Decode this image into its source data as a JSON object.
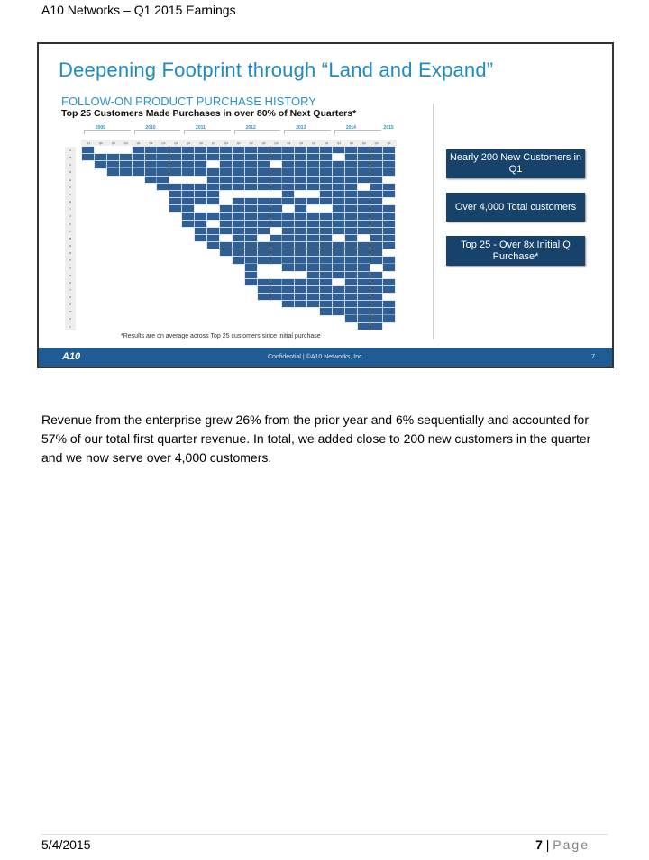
{
  "doc_header": "A10 Networks – Q1 2015 Earnings",
  "slide": {
    "title": "Deepening Footprint through “Land and Expand”",
    "subtitle": "FOLLOW-ON PRODUCT PURCHASE HISTORY",
    "subtitle2": "Top 25 Customers Made Purchases in over 80% of Next Quarters*",
    "years": [
      "2009",
      "2010",
      "2011",
      "2012",
      "2013",
      "2014",
      "2015"
    ],
    "quarters": [
      "Q1",
      "Q2",
      "Q3",
      "Q4",
      "Q1",
      "Q2",
      "Q3",
      "Q4",
      "Q1",
      "Q2",
      "Q3",
      "Q4",
      "Q1",
      "Q2",
      "Q3",
      "Q4",
      "Q1",
      "Q2",
      "Q3",
      "Q4",
      "Q1",
      "Q2",
      "Q3",
      "Q4",
      "Q1"
    ],
    "rows": [
      "A",
      "B",
      "C",
      "D",
      "E",
      "F",
      "G",
      "H",
      "I",
      "J",
      "K",
      "L",
      "M",
      "N",
      "O",
      "P",
      "Q",
      "R",
      "S",
      "T",
      "U",
      "V",
      "W",
      "X",
      "Y"
    ],
    "purchases": [
      "1000111111111111111111111",
      "1111111111111111111101111",
      "0111111111011110111111111",
      "0011111111111111111111111",
      "0000011000111111111111110",
      "0000001111111111111111011",
      "0000000111100000100111111",
      "0000000111101111111111110",
      "0000000110011111010011111",
      "0000000011111111111111111",
      "0000000011011111111111111",
      "0000000001111110111111111",
      "0000000001101101111101011",
      "0000000000111111111111111",
      "0000000000011111111111110",
      "0000000000001111111111111",
      "0000000000000100111111101",
      "0000000000000100001111110",
      "0000000000000111111101111",
      "0000000000000011111111111",
      "0000000000000011111111110",
      "0000000000000000111111111",
      "0000000000000000000111111",
      "0000000000000000000001111",
      "0000000000000000000000110"
    ],
    "cell_color": "#2f5f94",
    "callouts": [
      "Nearly 200 New Customers in Q1",
      "Over 4,000 Total customers",
      "Top 25 - Over 8x Initial Q Purchase*"
    ],
    "note": "*Results are on average across Top 25 customers since initial purchase",
    "footer": {
      "logo": "A10",
      "confidential": "Confidential   |   ©A10 Networks, Inc.",
      "page": "7"
    }
  },
  "paragraph": "Revenue from the enterprise grew 26% from the prior year and 6% sequentially and accounted for 57% of our total first quarter revenue.  In total, we added close to 200 new customers in the quarter and we now serve over 4,000 customers.",
  "footer": {
    "date": "5/4/2015",
    "page_num": "7",
    "page_sep": " | ",
    "page_word": "Page"
  }
}
